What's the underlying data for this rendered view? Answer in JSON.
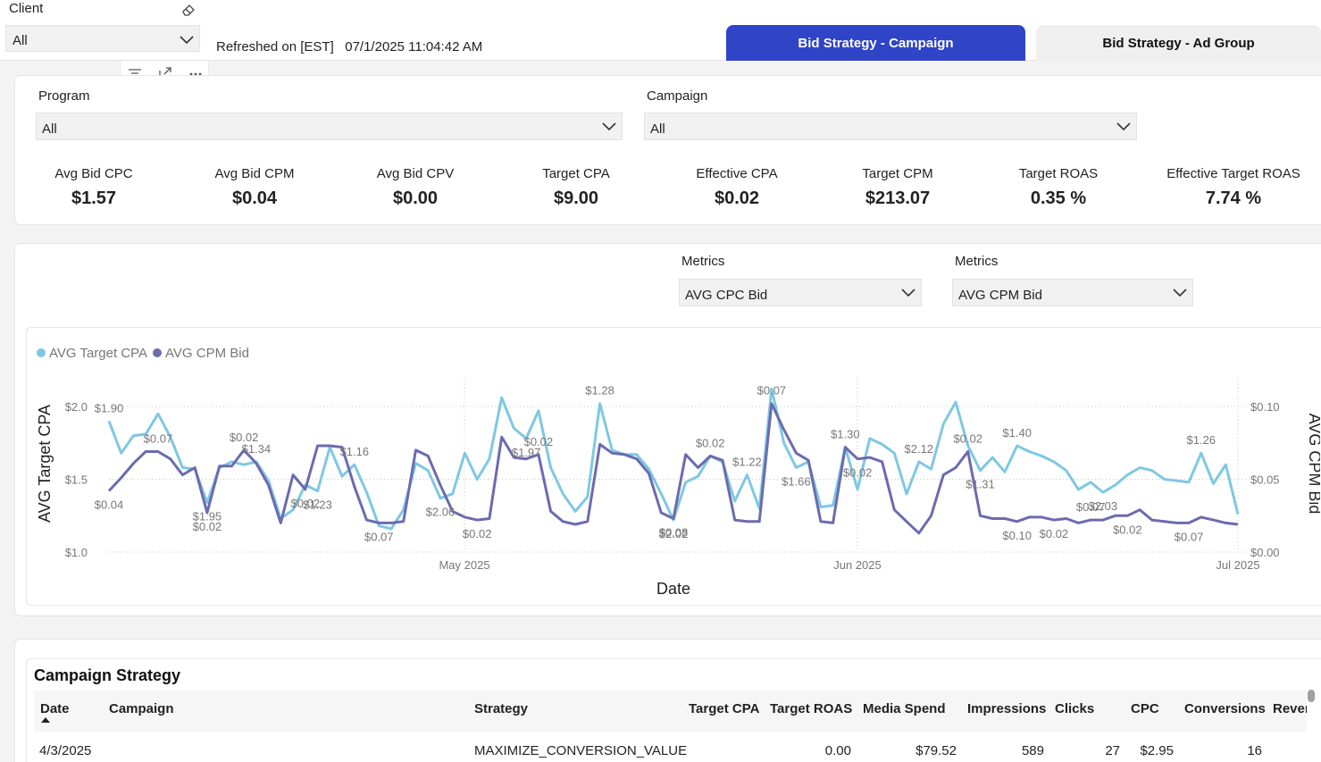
{
  "top": {
    "client_label": "Client",
    "client_value": "All",
    "refreshed": "Refreshed on [EST]   07/1/2025 11:04:42 AM",
    "tabs": [
      {
        "label": "Bid Strategy - Campaign",
        "active": true
      },
      {
        "label": "Bid Strategy - Ad Group",
        "active": false
      }
    ]
  },
  "filters": {
    "program_label": "Program",
    "program_value": "All",
    "campaign_label": "Campaign",
    "campaign_value": "All"
  },
  "kpis": [
    {
      "label": "Avg Bid CPC",
      "value": "$1.57"
    },
    {
      "label": "Avg Bid CPM",
      "value": "$0.04"
    },
    {
      "label": "Avg Bid CPV",
      "value": "$0.00"
    },
    {
      "label": "Target CPA",
      "value": "$9.00"
    },
    {
      "label": "Effective CPA",
      "value": "$0.02"
    },
    {
      "label": "Target CPM",
      "value": "$213.07"
    },
    {
      "label": "Target ROAS",
      "value": "0.35 %"
    },
    {
      "label": "Effective Target ROAS",
      "value": "7.74 %"
    }
  ],
  "metrics": {
    "label1": "Metrics",
    "value1": "AVG CPC Bid",
    "label2": "Metrics",
    "value2": "AVG CPM Bid"
  },
  "colors": {
    "series_a": "#7ec8e3",
    "series_b": "#6b6bb0",
    "tab_active": "#2f44c7"
  },
  "chart_data": {
    "type": "line",
    "xlabel": "Date",
    "y_left_label": "AVG Target CPA",
    "y_right_label": "AVG CPM Bid",
    "y_left_range": [
      1.0,
      2.0
    ],
    "y_right_range": [
      0.0,
      0.1
    ],
    "y_left_ticks": [
      "$1.0",
      "$1.5",
      "$2.0"
    ],
    "y_right_ticks": [
      "$0.00",
      "$0.05",
      "$0.10"
    ],
    "x_ticks": [
      "May 2025",
      "Jun 2025",
      "Jul 2025"
    ],
    "legend": [
      "AVG Target CPA",
      "AVG CPM Bid"
    ],
    "series": [
      {
        "name": "AVG Target CPA",
        "axis": "left",
        "values": [
          1.9,
          1.68,
          1.8,
          1.81,
          1.95,
          1.79,
          1.58,
          1.57,
          1.34,
          1.58,
          1.62,
          1.6,
          1.62,
          1.49,
          1.23,
          1.29,
          1.46,
          1.42,
          1.72,
          1.52,
          1.6,
          1.41,
          1.18,
          1.16,
          1.29,
          1.61,
          1.56,
          1.37,
          1.4,
          1.68,
          1.5,
          1.64,
          2.06,
          1.85,
          1.78,
          1.97,
          1.58,
          1.4,
          1.28,
          1.38,
          2.02,
          1.7,
          1.67,
          1.67,
          1.57,
          1.4,
          1.22,
          1.48,
          1.52,
          1.66,
          1.62,
          1.35,
          1.53,
          1.3,
          2.12,
          1.75,
          1.58,
          1.62,
          1.31,
          1.32,
          1.72,
          1.43,
          1.78,
          1.74,
          1.68,
          1.4,
          1.62,
          1.57,
          1.88,
          2.03,
          1.73,
          1.56,
          1.65,
          1.55,
          1.73,
          1.69,
          1.66,
          1.62,
          1.56,
          1.43,
          1.48,
          1.41,
          1.46,
          1.53,
          1.58,
          1.56,
          1.5,
          1.49,
          1.48,
          1.68,
          1.47,
          1.6,
          1.26
        ]
      },
      {
        "name": "AVG CPM Bid",
        "axis": "right",
        "values": [
          0.042,
          0.051,
          0.061,
          0.069,
          0.069,
          0.064,
          0.053,
          0.058,
          0.027,
          0.059,
          0.059,
          0.07,
          0.061,
          0.046,
          0.02,
          0.053,
          0.043,
          0.073,
          0.073,
          0.072,
          0.045,
          0.022,
          0.02,
          0.02,
          0.021,
          0.07,
          0.066,
          0.046,
          0.028,
          0.024,
          0.022,
          0.023,
          0.079,
          0.065,
          0.064,
          0.067,
          0.028,
          0.021,
          0.019,
          0.021,
          0.074,
          0.068,
          0.067,
          0.064,
          0.054,
          0.027,
          0.023,
          0.067,
          0.058,
          0.066,
          0.063,
          0.022,
          0.021,
          0.021,
          0.102,
          0.084,
          0.068,
          0.063,
          0.021,
          0.02,
          0.072,
          0.064,
          0.065,
          0.062,
          0.029,
          0.021,
          0.013,
          0.025,
          0.053,
          0.058,
          0.069,
          0.025,
          0.023,
          0.023,
          0.021,
          0.024,
          0.024,
          0.022,
          0.023,
          0.02,
          0.022,
          0.022,
          0.025,
          0.025,
          0.029,
          0.022,
          0.021,
          0.02,
          0.02,
          0.024,
          0.022,
          0.02,
          0.019
        ]
      }
    ],
    "point_labels_left": [
      "$1.90",
      "$1.95",
      "$1.34",
      "$1.23",
      "$1.16",
      "$2.06",
      "$1.97",
      "$1.28",
      "$2.02",
      "$1.22",
      "$1.66",
      "$1.30",
      "$2.12",
      "$1.31",
      "$1.40",
      "$2.03",
      "$1.26"
    ],
    "point_labels_right": [
      "$0.04",
      "$0.07",
      "$0.02",
      "$0.02",
      "$0.02",
      "$0.07",
      "$0.02",
      "$0.02",
      "$0.08",
      "$0.02",
      "$0.07",
      "$0.02",
      "$0.02",
      "$0.10",
      "$0.02",
      "$0.07",
      "$0.02",
      "$0.07"
    ]
  },
  "table": {
    "title": "Campaign Strategy",
    "columns": [
      "Date",
      "Campaign",
      "Strategy",
      "Target CPA",
      "Target ROAS",
      "Media Spend",
      "Impressions",
      "Clicks",
      "CPC",
      "Conversions",
      "Rever"
    ],
    "rows": [
      [
        "4/3/2025",
        "",
        "MAXIMIZE_CONVERSION_VALUE",
        "",
        "0.00",
        "$79.52",
        "589",
        "27",
        "$2.95",
        "16",
        ""
      ]
    ]
  }
}
